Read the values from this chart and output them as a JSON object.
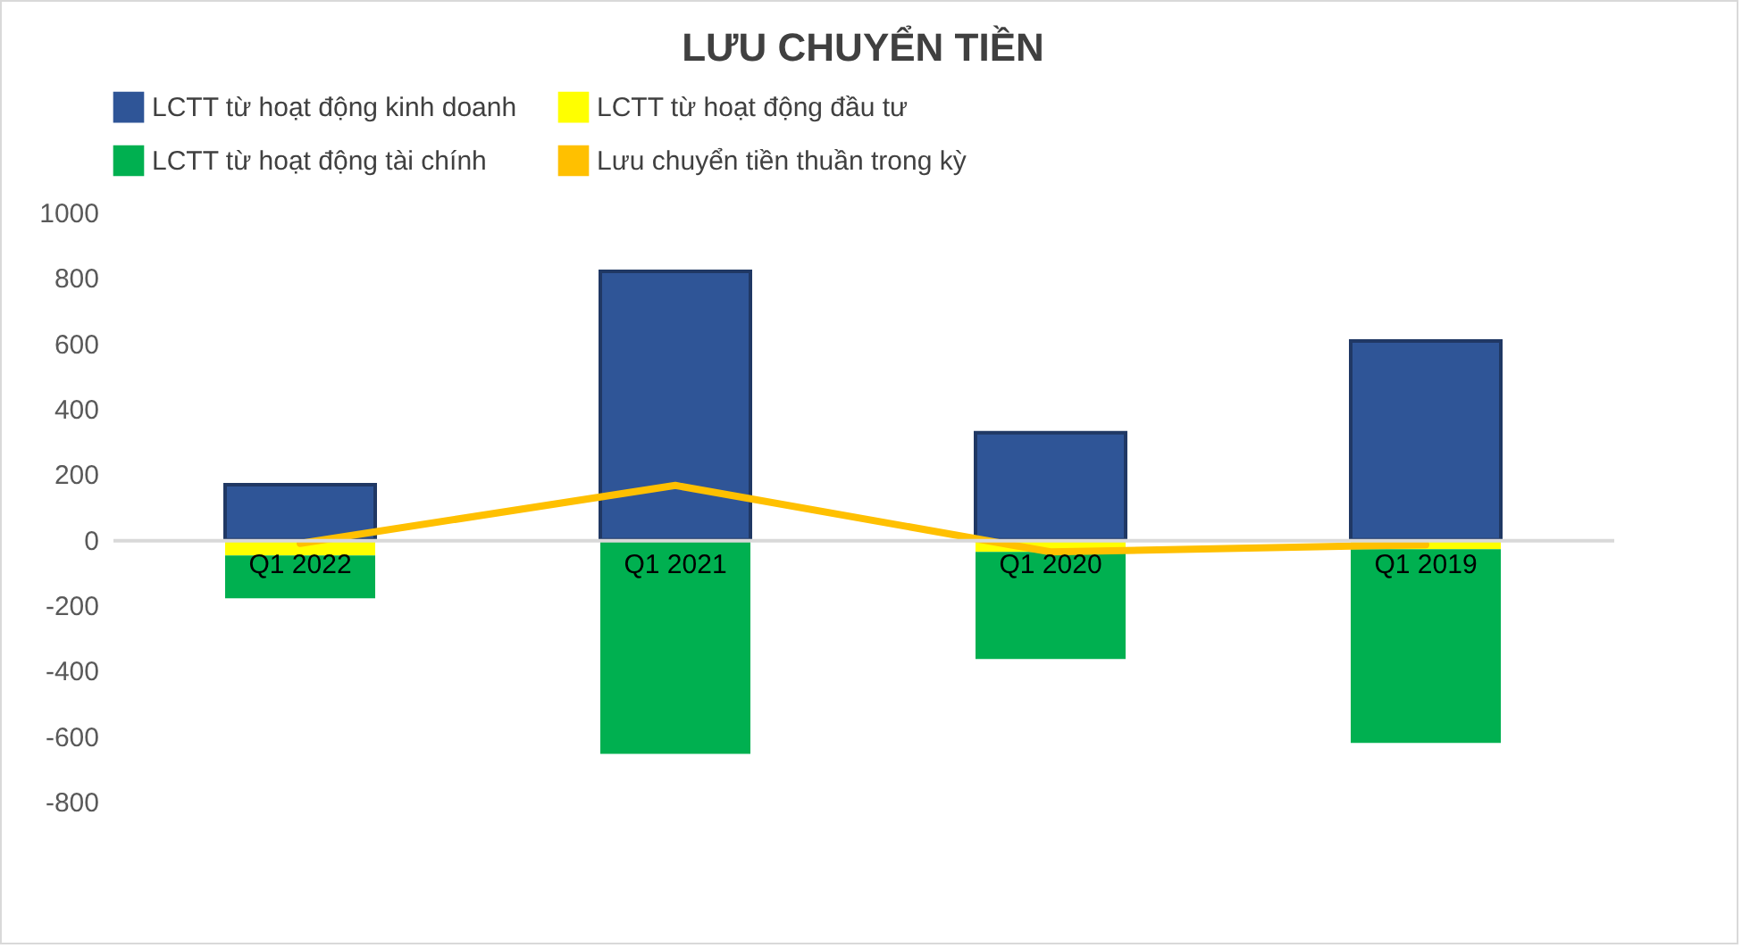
{
  "chart_data": {
    "type": "bar",
    "stacked": true,
    "title": "LƯU CHUYỂN TIỀN",
    "categories": [
      "Q1 2022",
      "Q1 2021",
      "Q1 2020",
      "Q1 2019"
    ],
    "series": [
      {
        "name": "LCTT từ hoạt động kinh doanh",
        "color": "#2f5597",
        "values": [
          168,
          820,
          327,
          607
        ]
      },
      {
        "name": "LCTT từ hoạt động đầu tư",
        "color": "#ffff00",
        "values": [
          -48,
          -5,
          -37,
          -29
        ]
      },
      {
        "name": "LCTT từ hoạt động tài chính",
        "color": "#00b050",
        "values": [
          -131,
          -649,
          -327,
          -592
        ]
      },
      {
        "name": "Lưu chuyển tiền thuần trong kỳ",
        "type": "line",
        "color": "#ffc000",
        "values": [
          -11,
          166,
          -37,
          -15
        ]
      }
    ],
    "ylim": [
      -800,
      1000
    ],
    "yticks": [
      -800,
      -600,
      -400,
      -200,
      0,
      200,
      400,
      600,
      800,
      1000
    ],
    "grid": false,
    "legend": "top"
  }
}
